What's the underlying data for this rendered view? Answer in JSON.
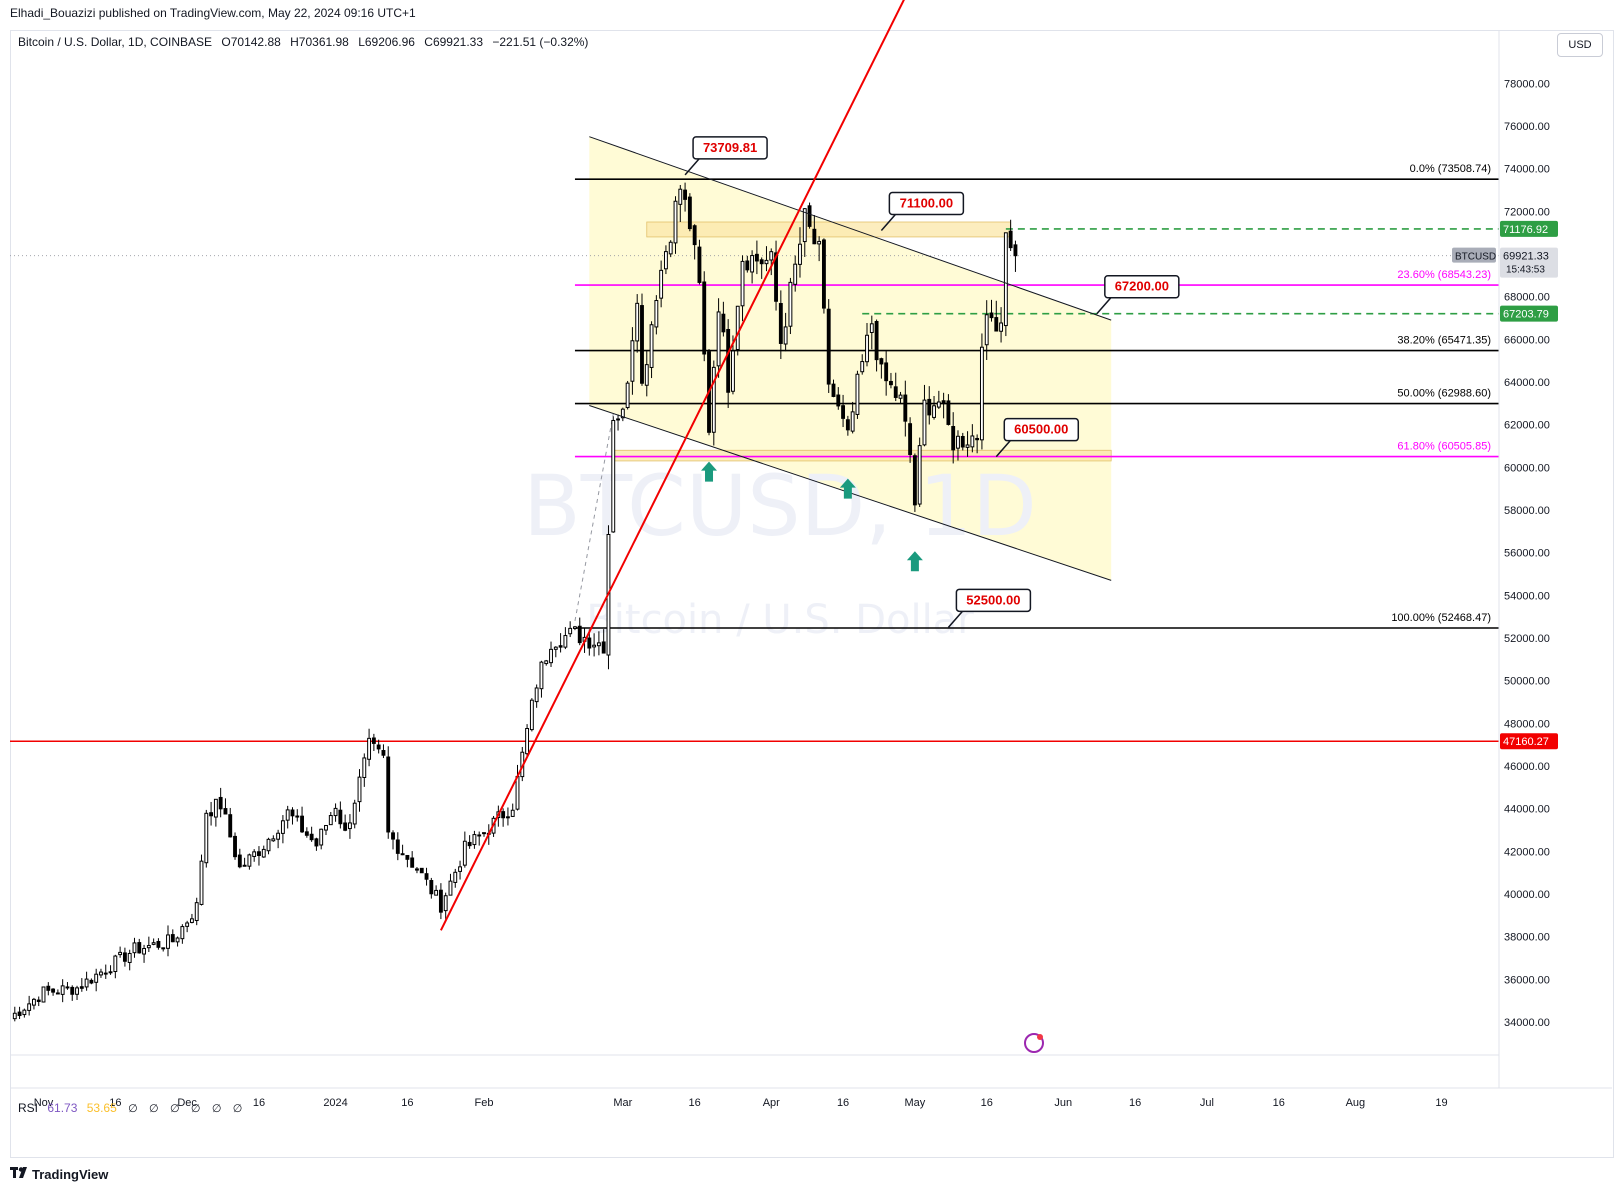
{
  "publisher": "Elhadi_Bouazizi published on TradingView.com, May 22, 2024 09:16 UTC+1",
  "symbol_line": {
    "name": "Bitcoin / U.S. Dollar, 1D, COINBASE",
    "open": "O70142.88",
    "high": "H70361.98",
    "low": "L69206.96",
    "close": "C69921.33",
    "change": "−221.51 (−0.32%)"
  },
  "currency": "USD",
  "watermark": {
    "ticker": "BTCUSD, 1D",
    "name": "Bitcoin / U.S. Dollar"
  },
  "rsi": {
    "label": "RSI",
    "value": "61.73",
    "signal": "53.65",
    "icons": [
      "∅",
      "∅",
      "∅",
      "∅",
      "∅",
      "∅"
    ]
  },
  "brand": "TradingView",
  "colors": {
    "up": "#000000",
    "down": "#000000",
    "red_line": "#f20000",
    "fib_magenta": "#ff00ff",
    "green_dashed": "#2e9e44",
    "channel_fill": "#fffbd6",
    "zone_fill": "#fbe7a8",
    "arrow_teal": "#1a9a7e",
    "price_tag_gray": "#a9adb8"
  },
  "chart_data": {
    "type": "candlestick",
    "title": "Bitcoin / U.S. Dollar, 1D, COINBASE",
    "ylim": [
      32500,
      80500
    ],
    "y_ticks": [
      "78000.00",
      "76000.00",
      "74000.00",
      "72000.00",
      "70000.00",
      "68000.00",
      "66000.00",
      "64000.00",
      "62000.00",
      "60000.00",
      "58000.00",
      "56000.00",
      "54000.00",
      "52000.00",
      "50000.00",
      "48000.00",
      "46000.00",
      "44000.00",
      "42000.00",
      "40000.00",
      "38000.00",
      "36000.00",
      "34000.00"
    ],
    "x_range": [
      "2023-10-25",
      "2024-08-31"
    ],
    "x_ticks": [
      {
        "date": "2023-11-01",
        "label": "Nov"
      },
      {
        "date": "2023-11-16",
        "label": "16"
      },
      {
        "date": "2023-12-01",
        "label": "Dec"
      },
      {
        "date": "2023-12-16",
        "label": "16"
      },
      {
        "date": "2024-01-01",
        "label": "2024"
      },
      {
        "date": "2024-01-16",
        "label": "16"
      },
      {
        "date": "2024-02-01",
        "label": "Feb"
      },
      {
        "date": "2024-03-01",
        "label": "Mar"
      },
      {
        "date": "2024-03-16",
        "label": "16"
      },
      {
        "date": "2024-04-01",
        "label": "Apr"
      },
      {
        "date": "2024-04-16",
        "label": "16"
      },
      {
        "date": "2024-05-01",
        "label": "May"
      },
      {
        "date": "2024-05-16",
        "label": "16"
      },
      {
        "date": "2024-06-01",
        "label": "Jun"
      },
      {
        "date": "2024-06-16",
        "label": "16"
      },
      {
        "date": "2024-07-01",
        "label": "Jul"
      },
      {
        "date": "2024-07-16",
        "label": "16"
      },
      {
        "date": "2024-08-01",
        "label": "Aug"
      },
      {
        "date": "2024-08-19",
        "label": "19"
      }
    ],
    "close_anchors": [
      [
        "2023-10-25",
        34200
      ],
      [
        "2023-11-01",
        35400
      ],
      [
        "2023-11-08",
        35600
      ],
      [
        "2023-11-14",
        36500
      ],
      [
        "2023-11-20",
        37400
      ],
      [
        "2023-11-28",
        37800
      ],
      [
        "2023-12-03",
        39400
      ],
      [
        "2023-12-05",
        43900
      ],
      [
        "2023-12-08",
        44200
      ],
      [
        "2023-12-12",
        41200
      ],
      [
        "2023-12-17",
        42300
      ],
      [
        "2023-12-22",
        43800
      ],
      [
        "2023-12-28",
        42300
      ],
      [
        "2024-01-01",
        44200
      ],
      [
        "2024-01-03",
        42800
      ],
      [
        "2024-01-08",
        46900
      ],
      [
        "2024-01-11",
        46300
      ],
      [
        "2024-01-12",
        42800
      ],
      [
        "2024-01-18",
        41200
      ],
      [
        "2024-01-23",
        39500
      ],
      [
        "2024-01-28",
        42100
      ],
      [
        "2024-02-02",
        43100
      ],
      [
        "2024-02-07",
        44200
      ],
      [
        "2024-02-12",
        49900
      ],
      [
        "2024-02-15",
        51900
      ],
      [
        "2024-02-20",
        52200
      ],
      [
        "2024-02-26",
        51700
      ],
      [
        "2024-02-27",
        57000
      ],
      [
        "2024-02-28",
        62500
      ],
      [
        "2024-03-01",
        62400
      ],
      [
        "2024-03-04",
        68300
      ],
      [
        "2024-03-05",
        63800
      ],
      [
        "2024-03-08",
        68300
      ],
      [
        "2024-03-13",
        73100
      ],
      [
        "2024-03-15",
        71400
      ],
      [
        "2024-03-17",
        68400
      ],
      [
        "2024-03-19",
        61900
      ],
      [
        "2024-03-21",
        67800
      ],
      [
        "2024-03-23",
        64000
      ],
      [
        "2024-03-26",
        69900
      ],
      [
        "2024-04-01",
        69600
      ],
      [
        "2024-04-03",
        65900
      ],
      [
        "2024-04-08",
        71600
      ],
      [
        "2024-04-11",
        70000
      ],
      [
        "2024-04-13",
        64000
      ],
      [
        "2024-04-17",
        61300
      ],
      [
        "2024-04-19",
        63800
      ],
      [
        "2024-04-22",
        66800
      ],
      [
        "2024-04-24",
        64300
      ],
      [
        "2024-04-28",
        63100
      ],
      [
        "2024-04-30",
        60600
      ],
      [
        "2024-05-01",
        58300
      ],
      [
        "2024-05-03",
        62900
      ],
      [
        "2024-05-06",
        63100
      ],
      [
        "2024-05-09",
        61200
      ],
      [
        "2024-05-14",
        61500
      ],
      [
        "2024-05-15",
        66200
      ],
      [
        "2024-05-17",
        67000
      ],
      [
        "2024-05-19",
        66900
      ],
      [
        "2024-05-20",
        71400
      ],
      [
        "2024-05-21",
        70100
      ],
      [
        "2024-05-22",
        69921
      ]
    ],
    "last_close": 69921.33,
    "last_candle": {
      "date": "2024-05-22",
      "open": 70142.88,
      "high": 70361.98,
      "low": 69206.96,
      "close": 69921.33
    },
    "fib_levels": [
      {
        "label": "0.0% (73508.74)",
        "price": 73508.74,
        "color": "#000000"
      },
      {
        "label": "23.60% (68543.23)",
        "price": 68543.23,
        "color": "#ff00ff"
      },
      {
        "label": "38.20% (65471.35)",
        "price": 65471.35,
        "color": "#000000"
      },
      {
        "label": "50.00% (62988.60)",
        "price": 62988.6,
        "color": "#000000"
      },
      {
        "label": "61.80% (60505.85)",
        "price": 60505.85,
        "color": "#ff00ff"
      },
      {
        "label": "100.00% (52468.47)",
        "price": 52468.47,
        "color": "#000000"
      }
    ],
    "fib_start_date": "2024-02-20",
    "callouts": [
      {
        "text": "73709.81",
        "date": "2024-03-14",
        "price": 73709.81
      },
      {
        "text": "71100.00",
        "date": "2024-04-24",
        "price": 71100
      },
      {
        "text": "67200.00",
        "date": "2024-06-08",
        "price": 67200
      },
      {
        "text": "60500.00",
        "date": "2024-05-18",
        "price": 60500
      },
      {
        "text": "52500.00",
        "date": "2024-05-08",
        "price": 52500
      }
    ],
    "horizontal_lines": [
      {
        "price": 47160.27,
        "label": "47160.27",
        "color": "#f20000"
      },
      {
        "price": 71176.92,
        "label": "71176.92",
        "color": "#2e9e44",
        "dashed": true,
        "from": "2024-05-20"
      },
      {
        "price": 67203.79,
        "label": "67203.79",
        "color": "#2e9e44",
        "dashed": true,
        "from": "2024-04-20"
      }
    ],
    "current_price_label": "69921.33",
    "current_ticker_label": "BTCUSD",
    "countdown": "15:43:53",
    "channel": {
      "upper": [
        [
          "2024-02-23",
          75500
        ],
        [
          "2024-06-11",
          66900
        ]
      ],
      "lower": [
        [
          "2024-02-23",
          62900
        ],
        [
          "2024-06-11",
          54700
        ]
      ],
      "fill_to": [
        [
          "2024-02-23",
          75500
        ],
        [
          "2024-06-11",
          66900
        ],
        [
          "2024-06-11",
          54700
        ],
        [
          "2024-02-23",
          62900
        ]
      ]
    },
    "trendline": [
      [
        "2024-01-23",
        38300
      ],
      [
        "2024-04-30",
        82500
      ]
    ],
    "zones": [
      {
        "from": "2024-03-06",
        "to": "2024-05-21",
        "low": 70800,
        "high": 71500
      },
      {
        "from": "2024-02-28",
        "to": "2024-06-11",
        "low": 60300,
        "high": 60800
      }
    ],
    "arrows": [
      {
        "date": "2024-03-19",
        "price": 59800
      },
      {
        "date": "2024-04-17",
        "price": 59000
      },
      {
        "date": "2024-05-01",
        "price": 55600
      }
    ],
    "projection": [
      [
        "2024-02-20",
        52800
      ],
      [
        "2024-02-28",
        62500
      ]
    ]
  }
}
